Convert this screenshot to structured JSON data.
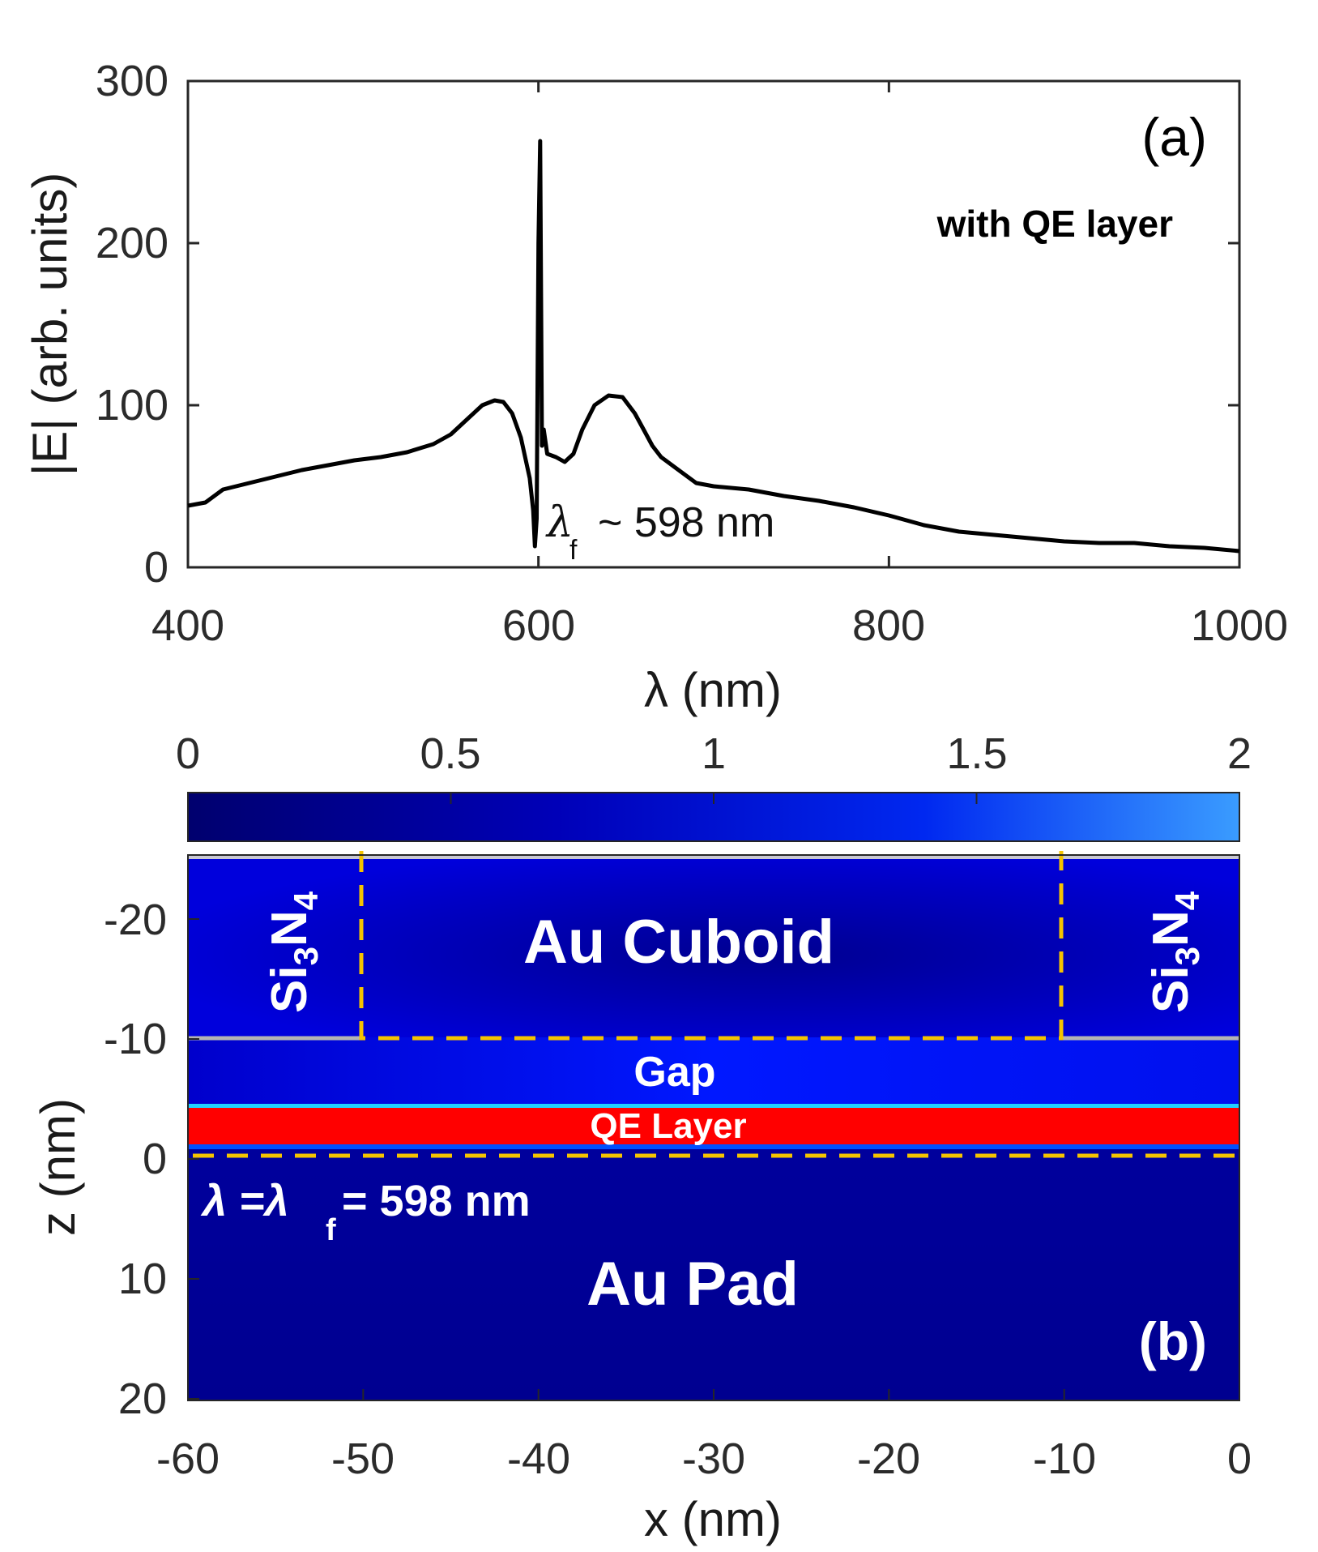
{
  "chart_data": [
    {
      "type": "line",
      "panel_label": "(a)",
      "annotation": "with QE layer",
      "marker_text": "~ 598 nm",
      "marker_symbol": "λ",
      "marker_subscript": "f",
      "xlabel": "λ (nm)",
      "ylabel": "|E| (arb. units)",
      "xlim": [
        400,
        1000
      ],
      "ylim": [
        0,
        300
      ],
      "xticks": [
        "400",
        "600",
        "800",
        "1000"
      ],
      "yticks": [
        "0",
        "100",
        "200",
        "300"
      ],
      "series": [
        {
          "x": [
            400,
            410,
            420,
            435,
            450,
            465,
            480,
            495,
            510,
            525,
            540,
            550,
            560,
            568,
            575,
            580,
            585,
            590,
            595,
            597,
            598,
            599,
            600,
            601,
            602,
            603,
            605,
            610,
            615,
            620,
            625,
            632,
            640,
            648,
            655,
            660,
            665,
            670,
            680,
            690,
            700,
            720,
            740,
            760,
            780,
            800,
            820,
            840,
            860,
            880,
            900,
            920,
            940,
            950,
            960,
            980,
            1000
          ],
          "y": [
            38,
            40,
            48,
            52,
            56,
            60,
            63,
            66,
            68,
            71,
            76,
            82,
            92,
            100,
            103,
            102,
            95,
            80,
            55,
            35,
            13,
            30,
            200,
            263,
            75,
            85,
            70,
            68,
            65,
            70,
            85,
            100,
            106,
            105,
            95,
            85,
            75,
            68,
            60,
            52,
            50,
            48,
            44,
            41,
            37,
            32,
            26,
            22,
            20,
            18,
            16,
            15,
            15,
            14,
            13,
            12,
            10
          ]
        }
      ]
    },
    {
      "type": "heatmap",
      "panel_label": "(b)",
      "xlabel": "x (nm)",
      "ylabel": "z (nm)",
      "xlim": [
        -60,
        0
      ],
      "ylim": [
        -26,
        20
      ],
      "xticks": [
        "-60",
        "-50",
        "-40",
        "-30",
        "-20",
        "-10",
        "0"
      ],
      "yticks": [
        "-20",
        "-10",
        "0",
        "10",
        "20"
      ],
      "colorbar": {
        "range": [
          0,
          2
        ],
        "ticks": [
          "0",
          "0.5",
          "1",
          "1.5",
          "2"
        ]
      },
      "labels": {
        "cuboid": "Au Cuboid",
        "gap": "Gap",
        "qe_layer": "QE Layer",
        "pad": "Au Pad",
        "si3n4_left": "Si3N4",
        "si3n4_right": "Si3N4",
        "lambda_eq": "λ =λ",
        "lambda_sub": "f",
        "lambda_value": "= 598 nm"
      },
      "colors": {
        "qe_layer": "#ff0000",
        "field_low": "#00007a",
        "field_mid": "#0000e6",
        "field_high": "#2f8cff",
        "outline": "#f5c400",
        "interface": "#b4b4b4"
      }
    }
  ]
}
